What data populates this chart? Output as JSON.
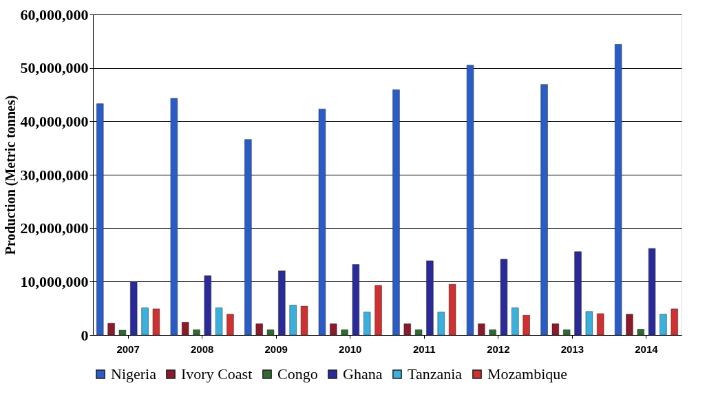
{
  "chart_data": {
    "type": "bar",
    "ylabel": "Production (Metric tonnes)",
    "categories": [
      "2007",
      "2008",
      "2009",
      "2010",
      "2011",
      "2012",
      "2013",
      "2014"
    ],
    "series": [
      {
        "name": "Nigeria",
        "color": "#2a5cc8",
        "values": [
          43300000,
          44300000,
          36600000,
          42300000,
          45900000,
          50500000,
          46900000,
          54400000
        ]
      },
      {
        "name": "Ivory Coast",
        "color": "#8b1a2a",
        "values": [
          2200000,
          2400000,
          2100000,
          2100000,
          2100000,
          2100000,
          2100000,
          3900000
        ]
      },
      {
        "name": "Congo",
        "color": "#2e6b2e",
        "values": [
          900000,
          1000000,
          1000000,
          1000000,
          1000000,
          1000000,
          1000000,
          1100000
        ]
      },
      {
        "name": "Ghana",
        "color": "#2a2a9a",
        "values": [
          10000000,
          11100000,
          12000000,
          13200000,
          13900000,
          14200000,
          15600000,
          16200000
        ]
      },
      {
        "name": "Tanzania",
        "color": "#3ab0dd",
        "values": [
          5100000,
          5100000,
          5600000,
          4300000,
          4300000,
          5100000,
          4400000,
          3900000
        ]
      },
      {
        "name": "Mozambique",
        "color": "#d03030",
        "values": [
          4900000,
          3900000,
          5400000,
          9300000,
          9500000,
          3700000,
          4000000,
          4900000
        ]
      }
    ],
    "ylim": [
      0,
      60000000
    ],
    "yticks": [
      0,
      {
        "value": 10000000,
        "label": "10,000,000"
      },
      {
        "value": 20000000,
        "label": "20,000,000"
      },
      {
        "value": 30000000,
        "label": "30,000,000"
      },
      {
        "value": 40000000,
        "label": "40,000,000"
      },
      {
        "value": 50000000,
        "label": "50,000,000"
      },
      {
        "value": 60000000,
        "label": "60,000,000"
      }
    ],
    "grid": "y",
    "legend": "bottom"
  }
}
